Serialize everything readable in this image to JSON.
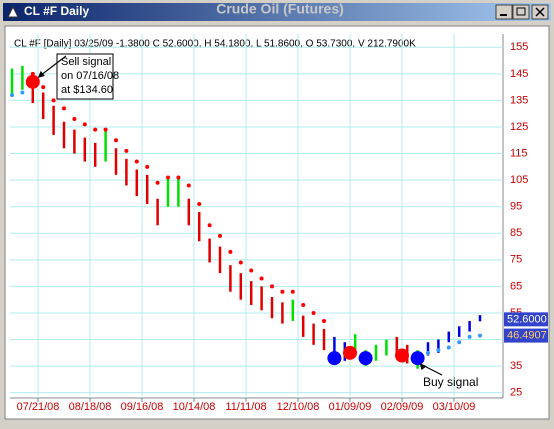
{
  "window_title": "CL #F Daily",
  "chart_data": {
    "type": "ohlc",
    "title": "Crude Oil (Futures)",
    "subtitle": "CL #F [Daily] 03/25/09 -1.3800 C 52.6000, H 54.1800, L 51.8600, O 53.7300, V 212.7900K",
    "x": [
      0,
      4,
      8,
      12,
      16,
      20,
      24,
      28,
      32,
      36,
      40,
      44,
      48,
      52,
      56,
      60,
      64,
      68,
      72,
      76,
      80,
      84,
      88,
      92,
      96,
      100,
      104,
      108,
      112,
      116,
      120,
      124,
      128,
      132,
      136,
      140,
      144,
      148,
      152,
      156,
      160,
      164,
      168,
      172,
      176,
      180
    ],
    "high": [
      147,
      148,
      145,
      138,
      133,
      127,
      124,
      121,
      119,
      124,
      117,
      113,
      109,
      107,
      98,
      106,
      106,
      98,
      93,
      83,
      80,
      73,
      70,
      67,
      65,
      61,
      59,
      60,
      54,
      51,
      49,
      46,
      44,
      47,
      41,
      43,
      45,
      46,
      43,
      41,
      44,
      45,
      48,
      50,
      52,
      54.18
    ],
    "low": [
      137,
      139,
      134,
      128,
      122,
      117,
      115,
      112,
      110,
      112,
      107,
      103,
      99,
      96,
      88,
      95,
      95,
      88,
      82,
      74,
      70,
      63,
      60,
      58,
      56,
      53,
      51,
      52,
      46,
      43,
      41,
      38,
      37,
      40,
      35,
      37,
      39,
      39,
      36,
      34,
      39,
      40,
      44,
      46,
      48,
      51.86
    ],
    "bar_colors": [
      "#00e000",
      "#00e000",
      "#e00000",
      "#e00000",
      "#e00000",
      "#e00000",
      "#e00000",
      "#e00000",
      "#e00000",
      "#00e000",
      "#e00000",
      "#e00000",
      "#e00000",
      "#e00000",
      "#e00000",
      "#00e000",
      "#00e000",
      "#e00000",
      "#e00000",
      "#e00000",
      "#e00000",
      "#e00000",
      "#e00000",
      "#e00000",
      "#e00000",
      "#e00000",
      "#e00000",
      "#00e000",
      "#e00000",
      "#e00000",
      "#e00000",
      "#0000e0",
      "#0000e0",
      "#00e000",
      "#00e000",
      "#00e000",
      "#00e000",
      "#e00000",
      "#e00000",
      "#00e000",
      "#0000e0",
      "#0000e0",
      "#0000e0",
      "#0000e0",
      "#0000e0",
      "#0000e0"
    ],
    "upper_stops": [
      null,
      null,
      145,
      140,
      135,
      132,
      128,
      126,
      124,
      124,
      120,
      116,
      112,
      110,
      104,
      106,
      106,
      103,
      96,
      88,
      84,
      78,
      74,
      71,
      68,
      65,
      63,
      63,
      58,
      55,
      52,
      null,
      null,
      null,
      null,
      null,
      null,
      null,
      null,
      null,
      null,
      null,
      null,
      null,
      null,
      null
    ],
    "lower_stops": [
      137,
      138,
      null,
      null,
      null,
      null,
      null,
      null,
      null,
      null,
      null,
      null,
      null,
      null,
      null,
      null,
      null,
      null,
      null,
      null,
      null,
      null,
      null,
      null,
      null,
      null,
      null,
      null,
      null,
      null,
      null,
      null,
      null,
      null,
      null,
      null,
      null,
      null,
      null,
      null,
      40,
      41,
      42,
      44,
      46,
      46.49
    ],
    "upper_stop_color": "#ff0000",
    "lower_stop_color": "#3399ff",
    "signals": {
      "x": [
        8,
        124,
        130,
        136,
        150,
        156
      ],
      "values": [
        142,
        38,
        40,
        38,
        39,
        38
      ],
      "colors": [
        "#ff0000",
        "#0000ff",
        "#ff0000",
        "#0000ff",
        "#ff0000",
        "#0000ff"
      ]
    },
    "price_labels": [
      {
        "value": 52.6,
        "label": "52.6000",
        "color": "#ffffff"
      },
      {
        "value": 46.4907,
        "label": "46.4907",
        "color": "#ffcc66"
      }
    ],
    "annotations": [
      {
        "lines": [
          "Sell signal",
          "on 07/16/08",
          "at $134.60"
        ],
        "x": 8,
        "value": 142
      },
      {
        "lines": [
          "Buy signal"
        ],
        "x": 156,
        "value": 38
      }
    ],
    "xlim": [
      0,
      185
    ],
    "xticks": [
      {
        "value": 10,
        "label": "07/21/08"
      },
      {
        "value": 30,
        "label": "08/18/08"
      },
      {
        "value": 50,
        "label": "09/16/08"
      },
      {
        "value": 70,
        "label": "10/14/08"
      },
      {
        "value": 90,
        "label": "11/11/08"
      },
      {
        "value": 110,
        "label": "12/10/08"
      },
      {
        "value": 130,
        "label": "01/09/09"
      },
      {
        "value": 150,
        "label": "02/09/09"
      },
      {
        "value": 170,
        "label": "03/10/09"
      }
    ],
    "ylim": [
      23,
      160
    ],
    "yticks": [
      25,
      35,
      45,
      55,
      65,
      75,
      85,
      95,
      105,
      115,
      125,
      135,
      145,
      155
    ],
    "grid": true,
    "grid_color": "#b0ecf0",
    "tick_label_color": "#cc0000"
  }
}
